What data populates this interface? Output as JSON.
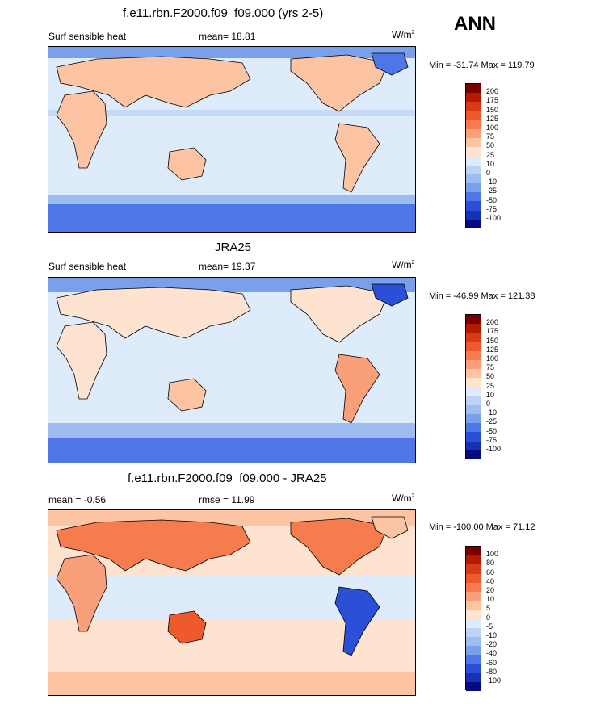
{
  "season": "ANN",
  "units": "W/m",
  "units_sup": "2",
  "panels": [
    {
      "title": "f.e11.rbn.F2000.f09_f09.000 (yrs 2-5)",
      "left_label": "Surf sensible heat",
      "center_label": "mean=  18.81",
      "right_label": "W/m",
      "minmax": "Min = -31.74 Max = 119.79",
      "colorbar_labels": [
        "200",
        "175",
        "150",
        "125",
        "100",
        "75",
        "50",
        "25",
        "10",
        "0",
        "-10",
        "-25",
        "-50",
        "-75",
        "-100"
      ]
    },
    {
      "title": "JRA25",
      "left_label": "Surf sensible heat",
      "center_label": "mean=  19.37",
      "right_label": "W/m",
      "minmax": "Min = -46.99 Max = 121.38",
      "colorbar_labels": [
        "200",
        "175",
        "150",
        "125",
        "100",
        "75",
        "50",
        "25",
        "10",
        "0",
        "-10",
        "-25",
        "-50",
        "-75",
        "-100"
      ]
    },
    {
      "title": "f.e11.rbn.F2000.f09_f09.000 - JRA25",
      "left_label": "mean =  -0.56",
      "center_label": "rmse =  11.99",
      "right_label": "W/m",
      "minmax": "Min = -100.00 Max =  71.12",
      "colorbar_labels": [
        "100",
        "80",
        "60",
        "40",
        "20",
        "10",
        "5",
        "0",
        "-5",
        "-10",
        "-20",
        "-40",
        "-60",
        "-80",
        "-100"
      ]
    }
  ],
  "colors": {
    "abs_scale": [
      "#7a0000",
      "#b31a00",
      "#d83a13",
      "#ee5a2c",
      "#f47c4e",
      "#f9a07a",
      "#fcc4a3",
      "#fde3d0",
      "#deebfa",
      "#bcd3f5",
      "#9dbcf1",
      "#7aa0ec",
      "#4f76e6",
      "#2b4fd6",
      "#1432b3",
      "#050a80"
    ],
    "diff_scale": [
      "#7a0000",
      "#b31a00",
      "#d83a13",
      "#ee5a2c",
      "#f47c4e",
      "#f9a07a",
      "#fcc4a3",
      "#fde3d0",
      "#deebfa",
      "#bcd3f5",
      "#9dbcf1",
      "#7aa0ec",
      "#4f76e6",
      "#2b4fd6",
      "#1432b3",
      "#050a80"
    ]
  }
}
